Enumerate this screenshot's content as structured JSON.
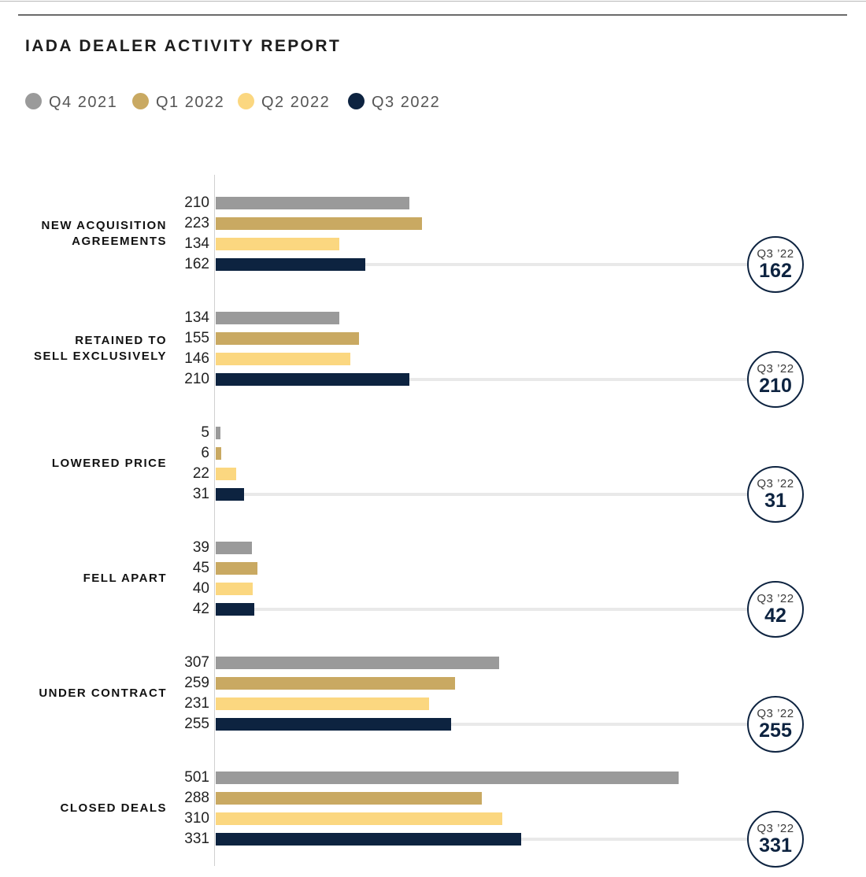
{
  "colors": {
    "q4_2021": "#9a9a9a",
    "q1_2022": "#c9a962",
    "q2_2022": "#fbd780",
    "q3_2022": "#0d2340",
    "track": "#e9e9e9"
  },
  "chart_data": {
    "type": "bar",
    "orientation": "horizontal",
    "title": "IADA DEALER ACTIVITY REPORT",
    "legend_position": "top-left",
    "categories": [
      [
        "NEW ACQUISITION",
        "AGREEMENTS"
      ],
      [
        "RETAINED TO",
        "SELL EXCLUSIVELY"
      ],
      [
        "LOWERED PRICE"
      ],
      [
        "FELL APART"
      ],
      [
        "UNDER CONTRACT"
      ],
      [
        "CLOSED DEALS"
      ]
    ],
    "series": [
      {
        "name": "Q4 2021",
        "color": "#9a9a9a",
        "values": [
          210,
          134,
          5,
          39,
          307,
          501
        ]
      },
      {
        "name": "Q1 2022",
        "color": "#c9a962",
        "values": [
          223,
          155,
          6,
          45,
          259,
          288
        ]
      },
      {
        "name": "Q2 2022",
        "color": "#fbd780",
        "values": [
          134,
          146,
          22,
          40,
          231,
          310
        ]
      },
      {
        "name": "Q3 2022",
        "color": "#0d2340",
        "values": [
          162,
          210,
          31,
          42,
          255,
          331
        ]
      }
    ],
    "xlim": [
      0,
      550
    ],
    "grid": false,
    "badge": {
      "tag": "Q3 ’22",
      "series": "Q3 2022"
    }
  }
}
